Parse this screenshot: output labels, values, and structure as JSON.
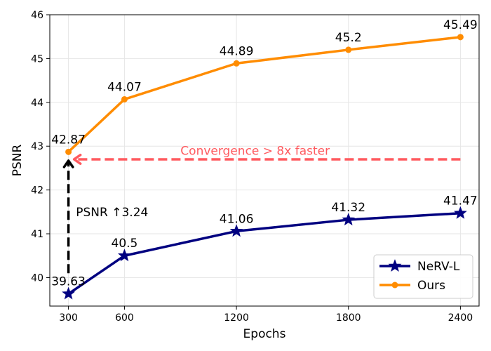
{
  "chart_data": {
    "type": "line",
    "title": "",
    "xlabel": "Epochs",
    "ylabel": "PSNR",
    "x": [
      300,
      600,
      1200,
      1800,
      2400
    ],
    "xticks": [
      300,
      600,
      1200,
      1800,
      2400
    ],
    "xlim": [
      200,
      2500
    ],
    "ylim": [
      39.35,
      46.0
    ],
    "yticks": [
      40,
      41,
      42,
      43,
      44,
      45,
      46
    ],
    "grid": true,
    "legend_position": "lower-right",
    "series": [
      {
        "name": "NeRV-L",
        "color": "#000080",
        "marker": "star",
        "values": [
          39.63,
          40.5,
          41.06,
          41.32,
          41.47
        ],
        "labels": [
          "39.63",
          "40.5",
          "41.06",
          "41.32",
          "41.47"
        ]
      },
      {
        "name": "Ours",
        "color": "#ff8c00",
        "marker": "circle",
        "values": [
          42.87,
          44.07,
          44.89,
          45.2,
          45.49
        ],
        "labels": [
          "42.87",
          "44.07",
          "44.89",
          "45.2",
          "45.49"
        ]
      }
    ],
    "annotations": [
      {
        "id": "convergence",
        "text": "Convergence > 8x faster",
        "color": "#ff5a5f",
        "arrow_from": [
          2400,
          42.7
        ],
        "arrow_to": [
          330,
          42.7
        ],
        "text_at": [
          1300,
          42.9
        ]
      },
      {
        "id": "psnr-gain",
        "text": "PSNR ↑3.24",
        "color": "#000000",
        "arrow_from": [
          300,
          40.1
        ],
        "arrow_to": [
          300,
          42.67
        ],
        "text_at": [
          340,
          41.5
        ]
      }
    ]
  }
}
